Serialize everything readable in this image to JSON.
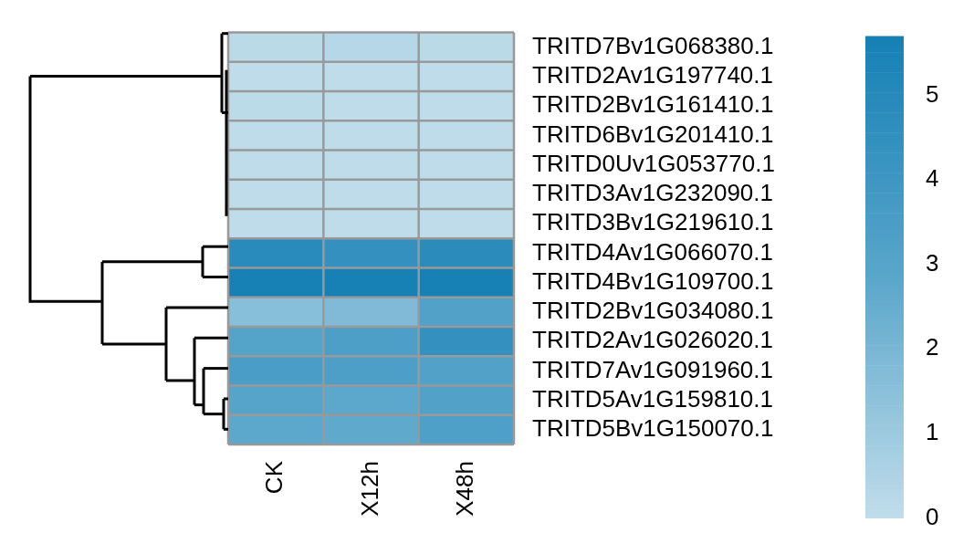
{
  "chart_data": {
    "type": "heatmap",
    "categories": [
      "CK",
      "X12h",
      "X48h"
    ],
    "y_categories": [
      "TRITD7Bv1G068380.1",
      "TRITD2Av1G197740.1",
      "TRITD2Bv1G161410.1",
      "TRITD6Bv1G201410.1",
      "TRITD0Uv1G053770.1",
      "TRITD3Av1G232090.1",
      "TRITD3Bv1G219610.1",
      "TRITD4Av1G066070.1",
      "TRITD4Bv1G109700.1",
      "TRITD2Bv1G034080.1",
      "TRITD2Av1G026020.1",
      "TRITD7Av1G091960.1",
      "TRITD5Av1G159810.1",
      "TRITD5Bv1G150070.1"
    ],
    "cells": [
      [
        0.15,
        0.3,
        0.15
      ],
      [
        0.05,
        0.05,
        0.05
      ],
      [
        0.1,
        0.05,
        0.05
      ],
      [
        0.05,
        0.05,
        0.05
      ],
      [
        0.05,
        0.05,
        0.05
      ],
      [
        0.05,
        0.05,
        0.05
      ],
      [
        0.05,
        0.05,
        0.05
      ],
      [
        4.9,
        4.4,
        4.8
      ],
      [
        5.6,
        5.6,
        5.6
      ],
      [
        1.6,
        1.8,
        3.2
      ],
      [
        3.1,
        3.4,
        4.4
      ],
      [
        3.5,
        3.4,
        3.2
      ],
      [
        3.0,
        2.8,
        3.2
      ],
      [
        2.8,
        2.7,
        3.3
      ]
    ],
    "clim": [
      0,
      5.7
    ],
    "cticks": [
      0,
      1,
      2,
      3,
      4,
      5
    ]
  }
}
